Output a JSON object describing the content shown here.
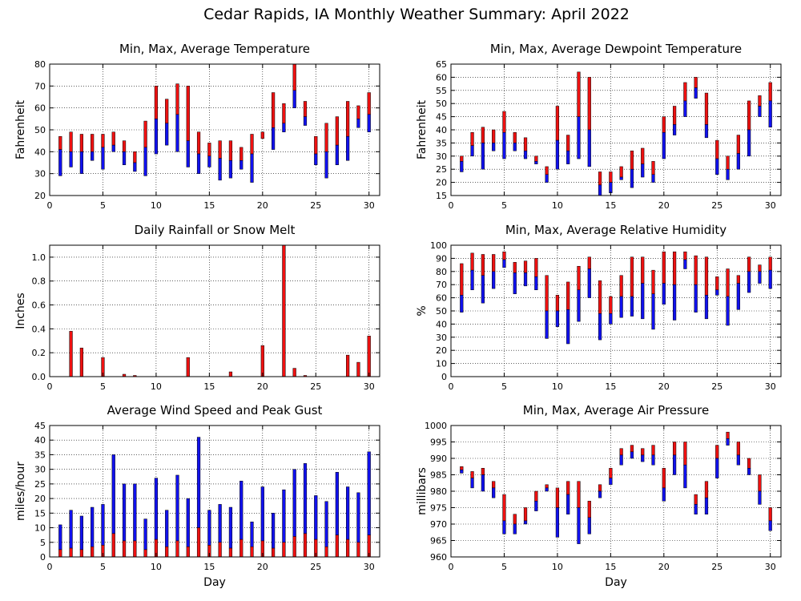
{
  "figure": {
    "title": "Cedar Rapids, IA Monthly Weather Summary: April 2022"
  },
  "colors": {
    "red": "#ee1111",
    "blue": "#1111ee"
  },
  "chart_data": [
    {
      "id": "temp",
      "type": "bar",
      "title": "Min, Max, Average Temperature",
      "ylabel": "Fahrenheit",
      "xlabel": "",
      "ylim": [
        20,
        80
      ],
      "yticks": [
        20,
        30,
        40,
        50,
        60,
        70,
        80
      ],
      "xlim": [
        0,
        31
      ],
      "xticks": [
        0,
        5,
        10,
        15,
        20,
        25,
        30
      ],
      "grid": true,
      "style": "range",
      "x": [
        1,
        2,
        3,
        4,
        5,
        6,
        7,
        8,
        9,
        10,
        11,
        12,
        13,
        14,
        15,
        16,
        17,
        18,
        19,
        20,
        21,
        22,
        23,
        24,
        25,
        26,
        27,
        28,
        29,
        30
      ],
      "max": [
        47,
        49,
        48,
        48,
        48,
        49,
        45,
        40,
        54,
        70,
        64,
        71,
        70,
        49,
        44,
        45,
        45,
        42,
        48,
        49,
        67,
        62,
        80,
        63,
        47,
        53,
        56,
        63,
        61,
        67
      ],
      "avg": [
        41,
        40,
        40,
        40,
        42,
        43,
        40,
        35,
        42,
        55,
        53,
        57,
        45,
        39,
        38,
        37,
        36,
        36,
        39,
        46,
        51,
        53,
        68,
        56,
        39,
        40,
        43,
        47,
        55,
        57
      ],
      "min": [
        29,
        33,
        30,
        36,
        32,
        40,
        34,
        31,
        29,
        39,
        43,
        40,
        33,
        30,
        33,
        27,
        28,
        32,
        26,
        46,
        41,
        49,
        60,
        52,
        34,
        28,
        34,
        36,
        51,
        49
      ]
    },
    {
      "id": "dewpoint",
      "type": "bar",
      "title": "Min, Max, Average Dewpoint Temperature",
      "ylabel": "Fahrenheit",
      "xlabel": "",
      "ylim": [
        15,
        65
      ],
      "yticks": [
        15,
        20,
        25,
        30,
        35,
        40,
        45,
        50,
        55,
        60,
        65
      ],
      "xlim": [
        0,
        31
      ],
      "xticks": [
        0,
        5,
        10,
        15,
        20,
        25,
        30
      ],
      "grid": true,
      "style": "range",
      "x": [
        1,
        2,
        3,
        4,
        5,
        6,
        7,
        8,
        9,
        10,
        11,
        12,
        13,
        14,
        15,
        16,
        17,
        18,
        19,
        20,
        21,
        22,
        23,
        24,
        25,
        26,
        27,
        28,
        29,
        30
      ],
      "max": [
        30,
        39,
        41,
        40,
        47,
        39,
        37,
        30,
        26,
        49,
        38,
        62,
        60,
        24,
        24,
        26,
        32,
        33,
        28,
        45,
        49,
        58,
        60,
        54,
        36,
        30,
        38,
        51,
        53,
        58
      ],
      "avg": [
        28,
        34,
        35,
        35,
        39,
        35,
        32,
        28,
        23,
        36,
        32,
        45,
        40,
        19,
        20,
        22,
        25,
        27,
        23,
        39,
        42,
        51,
        56,
        42,
        29,
        25,
        31,
        40,
        49,
        51
      ],
      "min": [
        24,
        30,
        25,
        32,
        29,
        32,
        29,
        27,
        20,
        25,
        27,
        29,
        26,
        15,
        16,
        21,
        18,
        22,
        20,
        29,
        38,
        45,
        52,
        37,
        23,
        21,
        25,
        30,
        45,
        41
      ]
    },
    {
      "id": "rain",
      "type": "bar",
      "title": "Daily Rainfall or Snow Melt",
      "ylabel": "Inches",
      "xlabel": "",
      "ylim": [
        0,
        1.1
      ],
      "yticks": [
        0.0,
        0.2,
        0.4,
        0.6,
        0.8,
        1.0
      ],
      "yticklabels": [
        "0.0",
        "0.2",
        "0.4",
        "0.6",
        "0.8",
        "1.0"
      ],
      "xlim": [
        0,
        31
      ],
      "xticks": [
        0,
        5,
        10,
        15,
        20,
        25,
        30
      ],
      "grid": true,
      "style": "single",
      "x": [
        1,
        2,
        3,
        4,
        5,
        6,
        7,
        8,
        9,
        10,
        11,
        12,
        13,
        14,
        15,
        16,
        17,
        18,
        19,
        20,
        21,
        22,
        23,
        24,
        25,
        26,
        27,
        28,
        29,
        30
      ],
      "values": [
        0,
        0.38,
        0.24,
        0,
        0.16,
        0,
        0.02,
        0.01,
        0,
        0,
        0,
        0,
        0.16,
        0,
        0,
        0,
        0.04,
        0,
        0,
        0.26,
        0,
        1.1,
        0.07,
        0.01,
        0,
        0,
        0,
        0.18,
        0.12,
        0.34
      ]
    },
    {
      "id": "humidity",
      "type": "bar",
      "title": "Min, Max, Average Relative Humidity",
      "ylabel": "%",
      "xlabel": "",
      "ylim": [
        0,
        100
      ],
      "yticks": [
        0,
        10,
        20,
        30,
        40,
        50,
        60,
        70,
        80,
        90,
        100
      ],
      "xlim": [
        0,
        31
      ],
      "xticks": [
        0,
        5,
        10,
        15,
        20,
        25,
        30
      ],
      "grid": true,
      "style": "range",
      "x": [
        1,
        2,
        3,
        4,
        5,
        6,
        7,
        8,
        9,
        10,
        11,
        12,
        13,
        14,
        15,
        16,
        17,
        18,
        19,
        20,
        21,
        22,
        23,
        24,
        25,
        26,
        27,
        28,
        29,
        30
      ],
      "max": [
        86,
        94,
        93,
        93,
        95,
        87,
        88,
        90,
        77,
        62,
        72,
        84,
        91,
        73,
        61,
        77,
        91,
        91,
        81,
        95,
        95,
        95,
        92,
        91,
        76,
        82,
        77,
        91,
        85,
        91
      ],
      "avg": [
        62,
        81,
        77,
        80,
        89,
        79,
        79,
        76,
        50,
        50,
        51,
        66,
        82,
        48,
        48,
        61,
        61,
        71,
        63,
        71,
        70,
        89,
        70,
        62,
        66,
        61,
        71,
        80,
        80,
        81
      ],
      "min": [
        49,
        66,
        56,
        67,
        83,
        63,
        69,
        66,
        29,
        38,
        25,
        42,
        60,
        28,
        40,
        45,
        46,
        44,
        36,
        55,
        43,
        82,
        49,
        44,
        62,
        39,
        51,
        64,
        71,
        67
      ]
    },
    {
      "id": "wind",
      "type": "bar",
      "title": "Average Wind Speed and Peak Gust",
      "ylabel": "miles/hour",
      "xlabel": "Day",
      "ylim": [
        0,
        45
      ],
      "yticks": [
        0,
        5,
        10,
        15,
        20,
        25,
        30,
        35,
        40,
        45
      ],
      "xlim": [
        0,
        31
      ],
      "xticks": [
        0,
        5,
        10,
        15,
        20,
        25,
        30
      ],
      "grid": true,
      "style": "stacked",
      "x": [
        1,
        2,
        3,
        4,
        5,
        6,
        7,
        8,
        9,
        10,
        11,
        12,
        13,
        14,
        15,
        16,
        17,
        18,
        19,
        20,
        21,
        22,
        23,
        24,
        25,
        26,
        27,
        28,
        29,
        30
      ],
      "avg": [
        2.5,
        3,
        2.5,
        3.5,
        4,
        8,
        5.5,
        5.5,
        2.5,
        6,
        3.5,
        5.5,
        3.5,
        10,
        4,
        5,
        3,
        6,
        3.5,
        5.5,
        3,
        5,
        7,
        8,
        6,
        3.5,
        7.5,
        6,
        5,
        7.5
      ],
      "peak": [
        11,
        16,
        14,
        17,
        18,
        35,
        25,
        25,
        13,
        27,
        16,
        28,
        20,
        41,
        16,
        18,
        17,
        26,
        12,
        24,
        15,
        23,
        30,
        32,
        21,
        19,
        29,
        24,
        22,
        36
      ]
    },
    {
      "id": "pressure",
      "type": "bar",
      "title": "Min, Max, Average Air Pressure",
      "ylabel": "millibars",
      "xlabel": "Day",
      "ylim": [
        960,
        1000
      ],
      "yticks": [
        960,
        965,
        970,
        975,
        980,
        985,
        990,
        995,
        1000
      ],
      "xlim": [
        0,
        31
      ],
      "xticks": [
        0,
        5,
        10,
        15,
        20,
        25,
        30
      ],
      "grid": true,
      "style": "range",
      "x": [
        1,
        2,
        3,
        4,
        5,
        6,
        7,
        8,
        9,
        10,
        11,
        12,
        13,
        14,
        15,
        16,
        17,
        18,
        19,
        20,
        21,
        22,
        23,
        24,
        25,
        26,
        27,
        28,
        29,
        30
      ],
      "max": [
        987.5,
        986,
        987,
        983,
        979,
        973,
        975,
        980,
        982,
        981,
        983,
        983,
        977,
        982,
        987,
        993,
        994,
        993,
        994,
        987,
        995,
        995,
        979,
        983,
        994,
        998,
        995,
        990,
        985,
        975
      ],
      "avg": [
        986.5,
        984,
        985,
        981,
        971,
        970,
        971,
        977,
        981,
        975,
        979,
        975,
        972,
        980,
        984,
        991,
        992,
        991,
        991,
        981,
        991,
        988,
        976,
        978,
        990,
        996,
        991,
        987,
        980,
        971
      ],
      "min": [
        985.5,
        981,
        980,
        978,
        967,
        967,
        970,
        974,
        980,
        966,
        973,
        964,
        967,
        978,
        982,
        988,
        990,
        989,
        988,
        977,
        985,
        981,
        973,
        973,
        984,
        994,
        988,
        985,
        976,
        968
      ]
    }
  ]
}
